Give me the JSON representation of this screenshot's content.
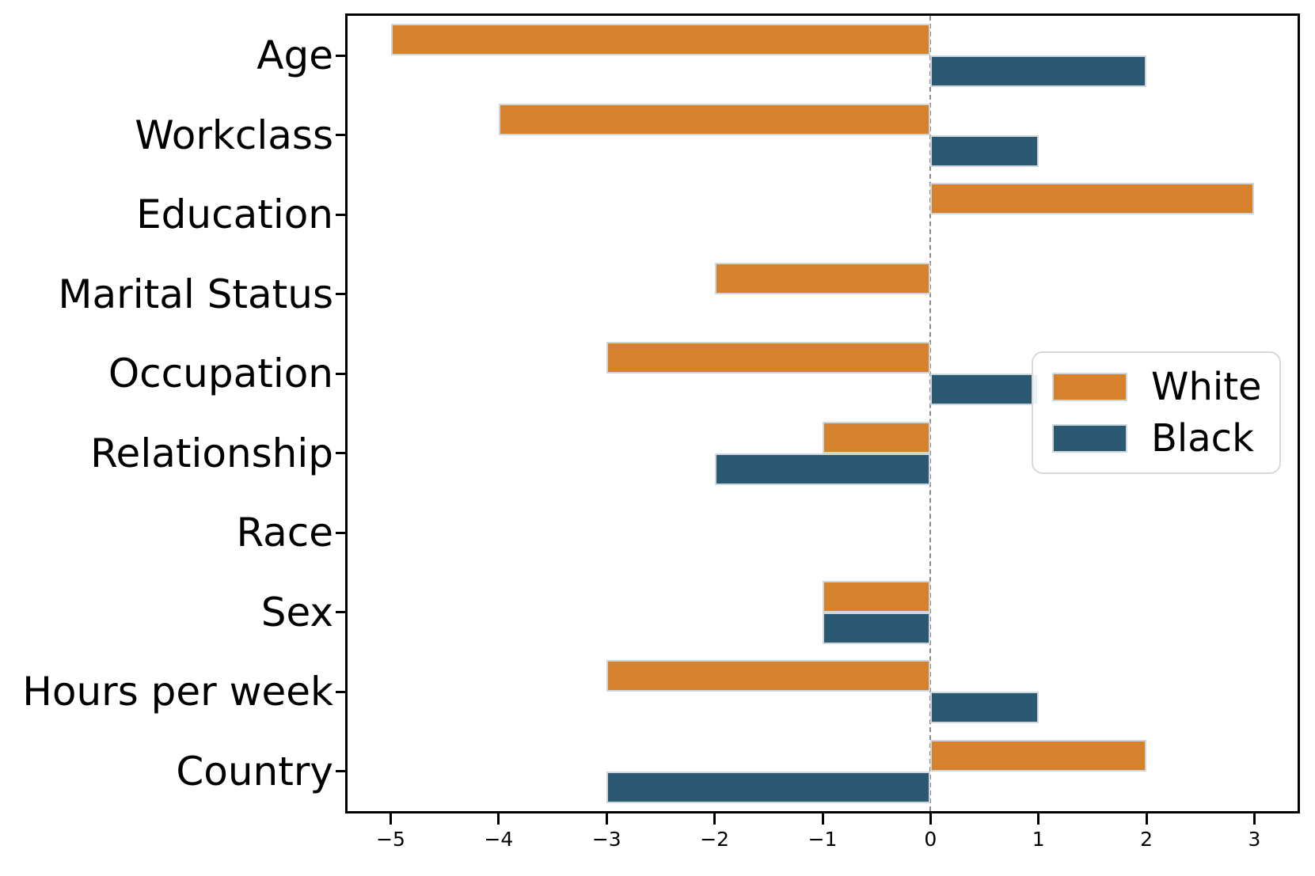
{
  "chart_data": {
    "type": "bar",
    "orientation": "horizontal",
    "title": "",
    "xlabel": "",
    "ylabel": "",
    "grid": false,
    "categories": [
      "Age",
      "Workclass",
      "Education",
      "Marital Status",
      "Occupation",
      "Relationship",
      "Race",
      "Sex",
      "Hours per week",
      "Country"
    ],
    "series": [
      {
        "name": "White",
        "color": "#D6812B",
        "values": [
          -5,
          -4,
          3,
          -2,
          -3,
          -1,
          0,
          -1,
          -3,
          2
        ]
      },
      {
        "name": "Black",
        "color": "#2B5971",
        "values": [
          2,
          1,
          0,
          0,
          1,
          -2,
          0,
          -1,
          1,
          -3
        ]
      }
    ],
    "x_tick_values": [
      -5,
      -4,
      -3,
      -2,
      -1,
      0,
      1,
      2,
      3
    ],
    "x_tick_labels": [
      "−5",
      "−4",
      "−3",
      "−2",
      "−1",
      "0",
      "1",
      "2",
      "3"
    ],
    "xlim": [
      -5.4,
      3.4
    ],
    "zero_line": {
      "x": 0,
      "style": "dashed",
      "color": "#8c8c8c"
    },
    "bar_edge_color": "#cfd7de",
    "legend": {
      "position": "center-right",
      "entries": [
        "White",
        "Black"
      ]
    }
  }
}
